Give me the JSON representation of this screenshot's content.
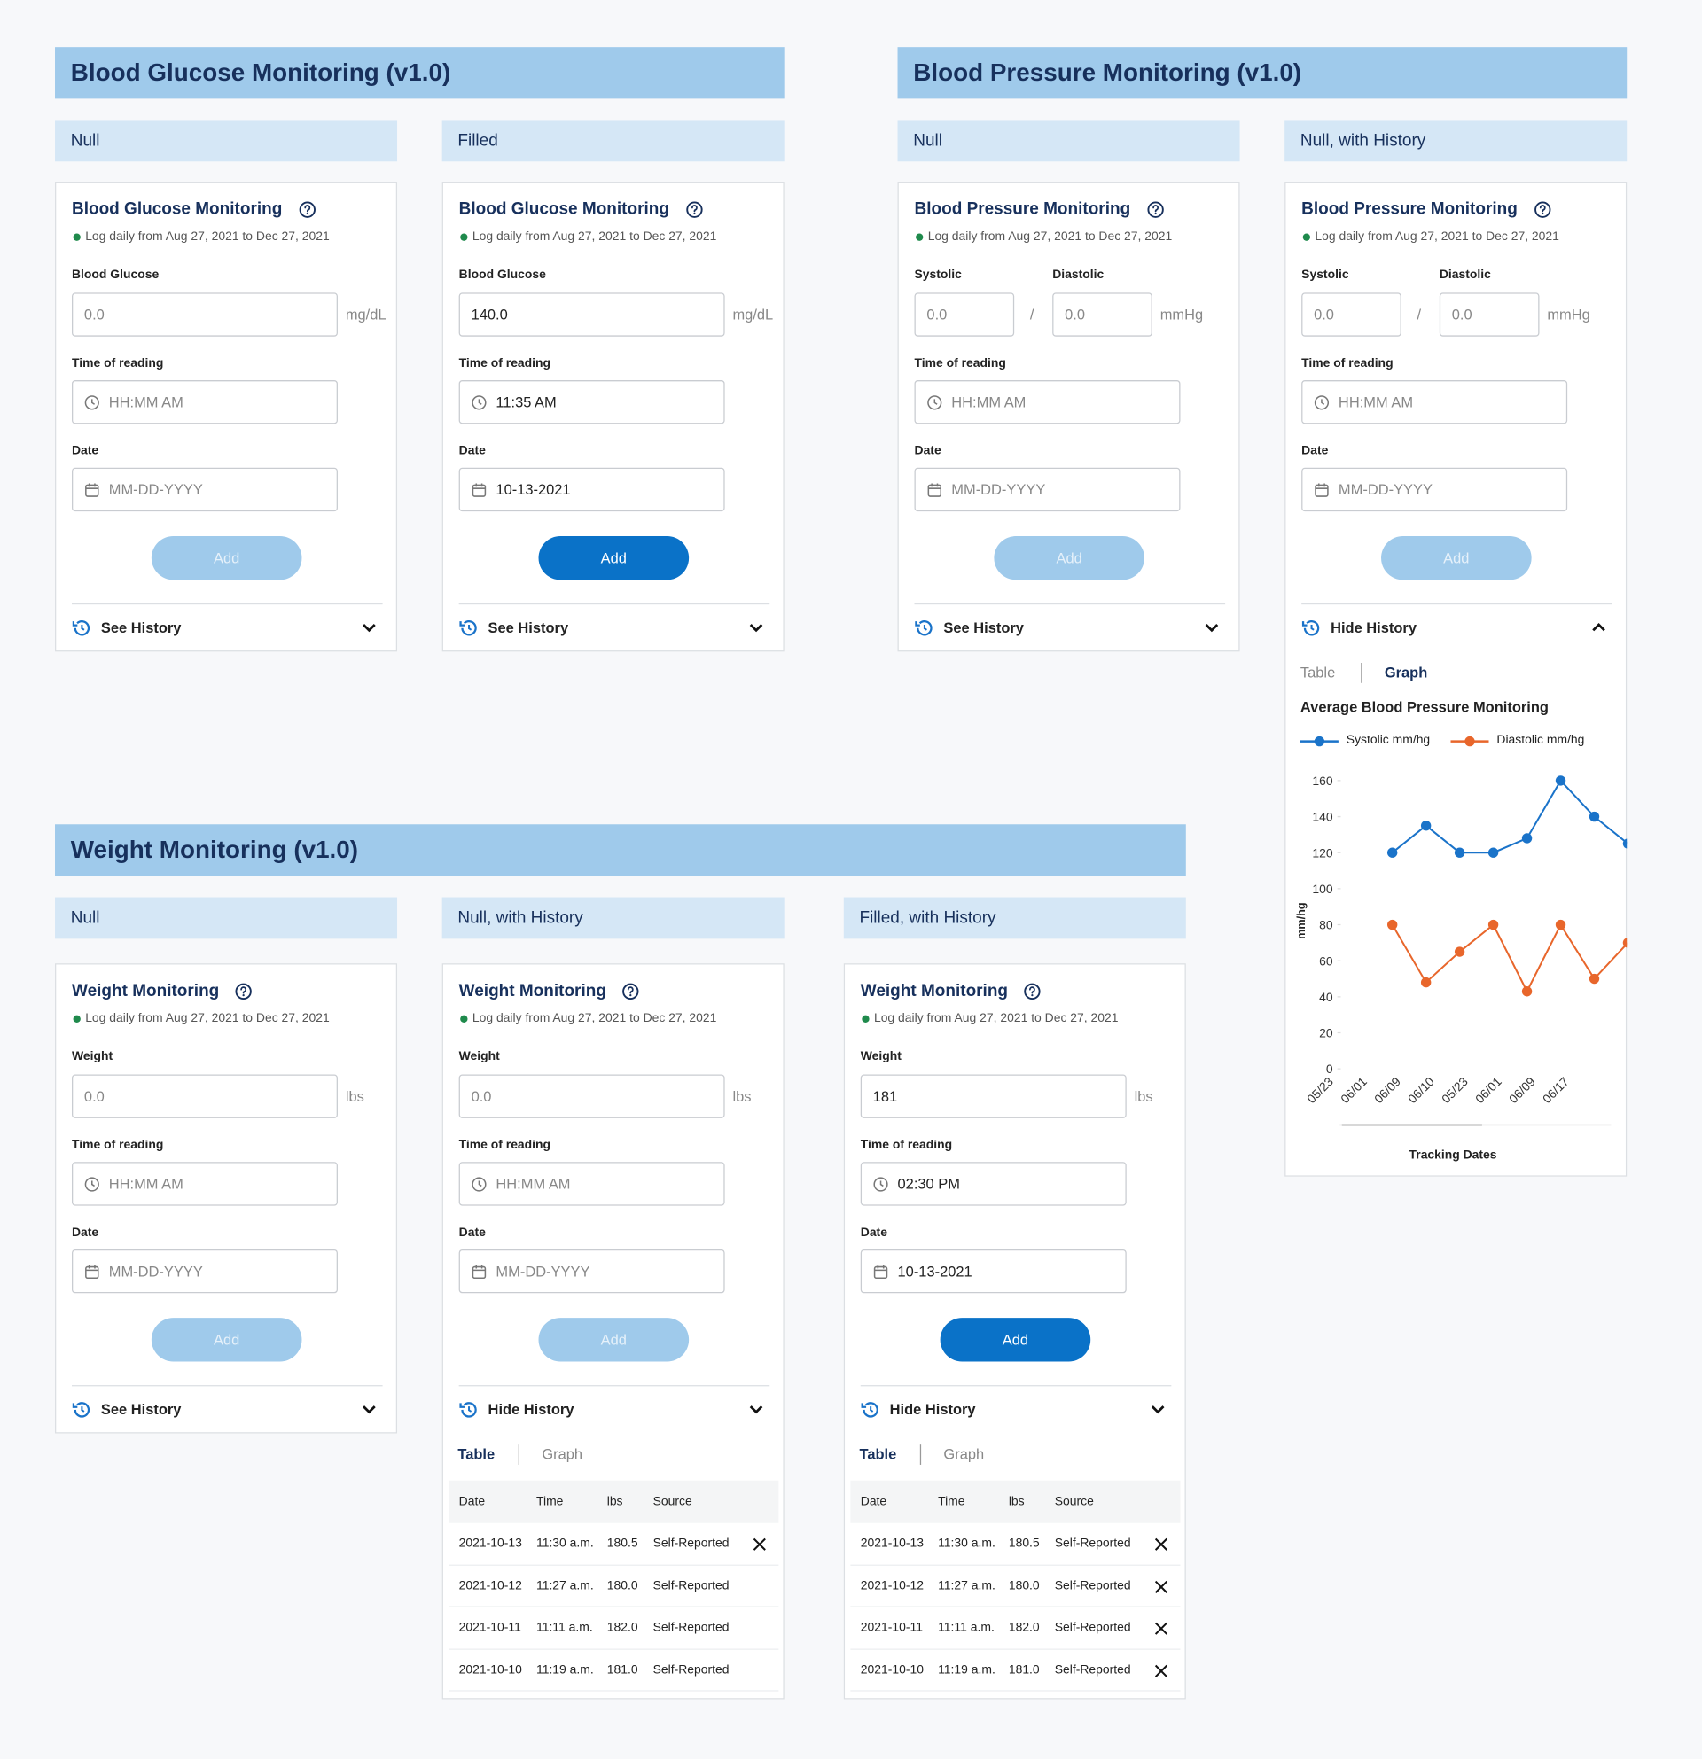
{
  "sections": [
    {
      "title": "Blood Glucose Monitoring (v1.0)",
      "states": [
        {
          "label": "Null",
          "card": {
            "title": "Blood Glucose Monitoring",
            "log": "Log daily from Aug 27, 2021 to Dec 27, 2021",
            "inputs": [
              {
                "label": "Blood Glucose",
                "value": "0.0"
              }
            ],
            "unit": "mg/dL",
            "time": {
              "label": "Time of reading",
              "value": "HH:MM AM"
            },
            "date": {
              "label": "Date",
              "value": "MM-DD-YYYY"
            },
            "filled": false,
            "button": "Add",
            "button_enabled": false,
            "history": {
              "label": "See History",
              "chevron": "down"
            }
          }
        },
        {
          "label": "Filled",
          "card": {
            "title": "Blood Glucose Monitoring",
            "log": "Log daily from Aug 27, 2021 to Dec 27, 2021",
            "inputs": [
              {
                "label": "Blood Glucose",
                "value": "140.0"
              }
            ],
            "unit": "mg/dL",
            "time": {
              "label": "Time of reading",
              "value": "11:35 AM"
            },
            "date": {
              "label": "Date",
              "value": "10-13-2021"
            },
            "filled": true,
            "button": "Add",
            "button_enabled": true,
            "history": {
              "label": "See History",
              "chevron": "down"
            }
          }
        }
      ]
    },
    {
      "title": "Blood Pressure Monitoring (v1.0)",
      "states": [
        {
          "label": "Null",
          "card": {
            "title": "Blood Pressure Monitoring",
            "log": "Log daily from Aug 27, 2021 to Dec 27, 2021",
            "inputs": [
              {
                "label": "Systolic",
                "value": "0.0"
              },
              {
                "label": "Diastolic",
                "value": "0.0"
              }
            ],
            "separator": "/",
            "unit": "mmHg",
            "time": {
              "label": "Time of reading",
              "value": "HH:MM AM"
            },
            "date": {
              "label": "Date",
              "value": "MM-DD-YYYY"
            },
            "filled": false,
            "button": "Add",
            "button_enabled": false,
            "history": {
              "label": "See History",
              "chevron": "down"
            }
          }
        },
        {
          "label": "Null, with History",
          "card": {
            "title": "Blood Pressure Monitoring",
            "log": "Log daily from Aug 27, 2021 to Dec 27, 2021",
            "inputs": [
              {
                "label": "Systolic",
                "value": "0.0"
              },
              {
                "label": "Diastolic",
                "value": "0.0"
              }
            ],
            "separator": "/",
            "unit": "mmHg",
            "time": {
              "label": "Time of reading",
              "value": "HH:MM AM"
            },
            "date": {
              "label": "Date",
              "value": "MM-DD-YYYY"
            },
            "filled": false,
            "button": "Add",
            "button_enabled": false,
            "history": {
              "label": "Hide History",
              "chevron": "up",
              "tabs": [
                "Table",
                "Graph"
              ],
              "active_tab": 1
            }
          }
        }
      ]
    },
    {
      "title": "Weight Monitoring (v1.0)",
      "states": [
        {
          "label": "Null",
          "card": {
            "title": "Weight Monitoring",
            "log": "Log daily from Aug 27, 2021 to Dec 27, 2021",
            "inputs": [
              {
                "label": "Weight",
                "value": "0.0"
              }
            ],
            "unit": "lbs",
            "time": {
              "label": "Time of reading",
              "value": "HH:MM AM"
            },
            "date": {
              "label": "Date",
              "value": "MM-DD-YYYY"
            },
            "filled": false,
            "button": "Add",
            "button_enabled": false,
            "history": {
              "label": "See History",
              "chevron": "down"
            }
          }
        },
        {
          "label": "Null, with History",
          "card": {
            "title": "Weight Monitoring",
            "log": "Log daily from Aug 27, 2021 to Dec 27, 2021",
            "inputs": [
              {
                "label": "Weight",
                "value": "0.0"
              }
            ],
            "unit": "lbs",
            "time": {
              "label": "Time of reading",
              "value": "HH:MM AM"
            },
            "date": {
              "label": "Date",
              "value": "MM-DD-YYYY"
            },
            "filled": false,
            "button": "Add",
            "button_enabled": false,
            "history": {
              "label": "Hide History",
              "chevron": "down",
              "tabs": [
                "Table",
                "Graph"
              ],
              "active_tab": 0,
              "table": {
                "columns": [
                  "Date",
                  "Time",
                  "lbs",
                  "Source"
                ],
                "rows": [
                  [
                    "2021-10-13",
                    "11:30 a.m.",
                    "180.5",
                    "Self-Reported"
                  ],
                  [
                    "2021-10-12",
                    "11:27 a.m.",
                    "180.0",
                    "Self-Reported"
                  ],
                  [
                    "2021-10-11",
                    "11:11 a.m.",
                    "182.0",
                    "Self-Reported"
                  ],
                  [
                    "2021-10-10",
                    "11:19 a.m.",
                    "181.0",
                    "Self-Reported"
                  ]
                ],
                "deletable": [
                  true,
                  false,
                  false,
                  false
                ]
              }
            }
          }
        },
        {
          "label": "Filled, with History",
          "card": {
            "title": "Weight Monitoring",
            "log": "Log daily from Aug 27, 2021 to Dec 27, 2021",
            "inputs": [
              {
                "label": "Weight",
                "value": "181"
              }
            ],
            "unit": "lbs",
            "time": {
              "label": "Time of reading",
              "value": "02:30 PM"
            },
            "date": {
              "label": "Date",
              "value": "10-13-2021"
            },
            "filled": true,
            "button": "Add",
            "button_enabled": true,
            "history": {
              "label": "Hide History",
              "chevron": "down",
              "tabs": [
                "Table",
                "Graph"
              ],
              "active_tab": 0,
              "table": {
                "columns": [
                  "Date",
                  "Time",
                  "lbs",
                  "Source"
                ],
                "rows": [
                  [
                    "2021-10-13",
                    "11:30 a.m.",
                    "180.5",
                    "Self-Reported"
                  ],
                  [
                    "2021-10-12",
                    "11:27 a.m.",
                    "180.0",
                    "Self-Reported"
                  ],
                  [
                    "2021-10-11",
                    "11:11 a.m.",
                    "182.0",
                    "Self-Reported"
                  ],
                  [
                    "2021-10-10",
                    "11:19 a.m.",
                    "181.0",
                    "Self-Reported"
                  ]
                ],
                "deletable": [
                  true,
                  true,
                  true,
                  true
                ]
              }
            }
          }
        }
      ]
    }
  ],
  "chart_data": {
    "type": "line",
    "title": "Average Blood Pressure Monitoring",
    "categories": [
      "05/23",
      "06/01",
      "06/09",
      "06/10",
      "05/23",
      "06/01",
      "06/09",
      "06/17",
      null
    ],
    "series": [
      {
        "name": "Systolic mm/hg",
        "color": "#1a73c9",
        "values": [
          null,
          120,
          135,
          120,
          120,
          128,
          160,
          140,
          125
        ]
      },
      {
        "name": "Diastolic mm/hg",
        "color": "#e8662b",
        "values": [
          null,
          80,
          48,
          65,
          80,
          43,
          80,
          50,
          70
        ]
      }
    ],
    "ylim": [
      0,
      160
    ],
    "yticks": [
      0,
      20,
      40,
      60,
      80,
      100,
      120,
      140,
      160
    ],
    "xlabel": "Tracking Dates",
    "ylabel": "mm/hg"
  }
}
